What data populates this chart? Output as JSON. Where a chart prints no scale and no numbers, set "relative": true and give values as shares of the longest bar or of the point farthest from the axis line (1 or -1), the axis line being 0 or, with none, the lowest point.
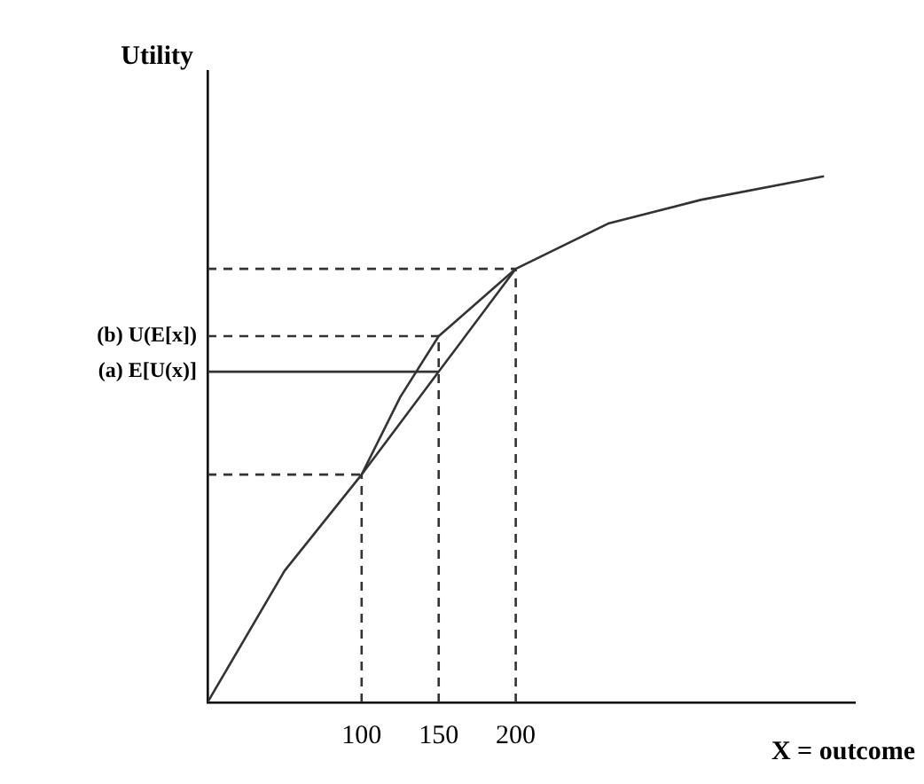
{
  "chart_data": {
    "type": "line",
    "relative": true,
    "xlabel": "X = outcome",
    "ylabel": "Utility",
    "tick_labels": "x",
    "marker": "none",
    "grid": false,
    "legend": false,
    "xlim": [
      0,
      420
    ],
    "xticks": [
      100,
      150,
      200
    ],
    "annotations": [
      {
        "text": "(b) U(E[x])",
        "x": 0,
        "y": 0.696
      },
      {
        "text": "(a) E[U(x)]",
        "x": 0,
        "y": 0.6285
      }
    ],
    "series": [
      {
        "type": "line",
        "color": "#333333",
        "line_style": "solid",
        "x": [
          0,
          50,
          100,
          125,
          150,
          200,
          260,
          320,
          400
        ],
        "values": [
          0,
          0.25,
          0.433,
          0.58,
          0.696,
          0.824,
          0.91,
          0.955,
          1
        ]
      },
      {
        "type": "line",
        "color": "#333333",
        "line_style": "solid",
        "x": [
          100,
          200
        ],
        "values": [
          0.433,
          0.824
        ]
      },
      {
        "type": "line",
        "color": "#333333",
        "line_style": "solid",
        "x": [
          0,
          150
        ],
        "values": [
          0.6285,
          0.6285
        ]
      },
      {
        "type": "line",
        "color": "#333333",
        "line_style": "dashed",
        "x": [
          0,
          100
        ],
        "values": [
          0.433,
          0.433
        ]
      },
      {
        "type": "line",
        "color": "#333333",
        "line_style": "dashed",
        "x": [
          0,
          150
        ],
        "values": [
          0.696,
          0.696
        ]
      },
      {
        "type": "line",
        "color": "#333333",
        "line_style": "dashed",
        "x": [
          0,
          200
        ],
        "values": [
          0.824,
          0.824
        ]
      },
      {
        "type": "line",
        "color": "#333333",
        "line_style": "dashed",
        "x": [
          100,
          100
        ],
        "values": [
          0,
          0.433
        ]
      },
      {
        "type": "line",
        "color": "#333333",
        "line_style": "dashed",
        "x": [
          150,
          150
        ],
        "values": [
          0,
          0.696
        ]
      },
      {
        "type": "line",
        "color": "#333333",
        "line_style": "dashed",
        "x": [
          200,
          200
        ],
        "values": [
          0,
          0.824
        ]
      }
    ]
  }
}
